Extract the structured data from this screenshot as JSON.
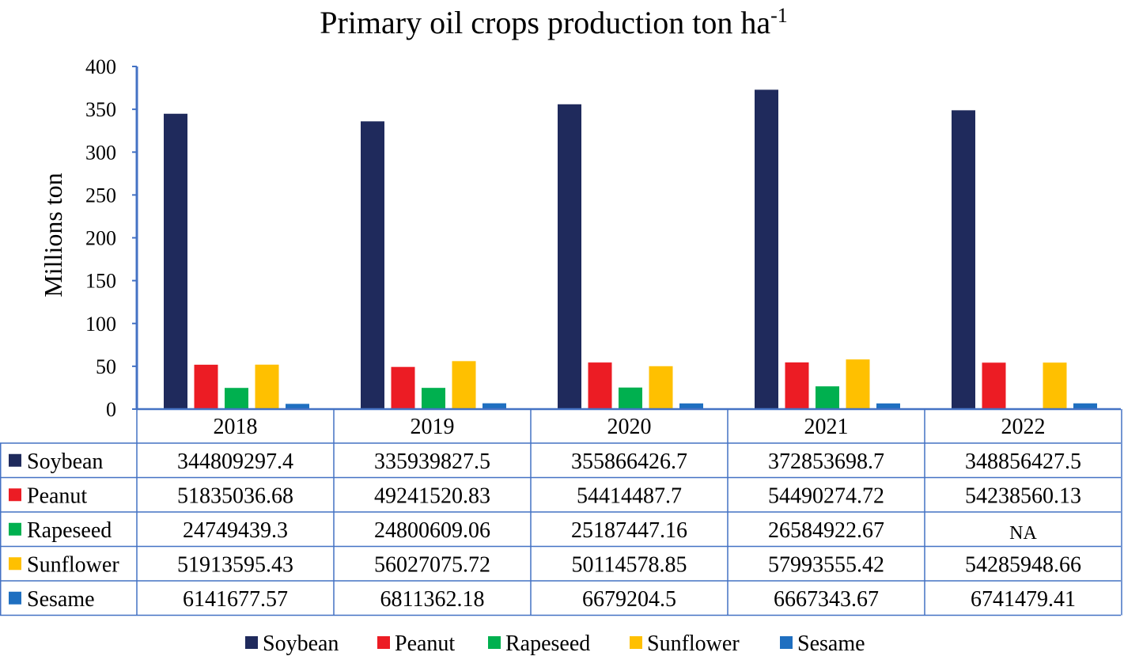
{
  "chart_data": {
    "type": "bar",
    "title": "Primary oil crops production ton ha",
    "title_superscript": "-1",
    "ylabel": "Millions ton",
    "xlabel": "",
    "ylim": [
      0,
      400
    ],
    "yticks": [
      "0",
      "50",
      "100",
      "150",
      "200",
      "250",
      "300",
      "350",
      "400"
    ],
    "grid": false,
    "legend_position": "bottom",
    "categories": [
      "2018",
      "2019",
      "2020",
      "2021",
      "2022"
    ],
    "series": [
      {
        "name": "Soybean",
        "color": "#1f2a5c",
        "values": [
          344.8092974,
          335.9398275,
          355.8664267,
          372.8536987,
          348.8564275
        ],
        "table": [
          "344809297.4",
          "335939827.5",
          "355866426.7",
          "372853698.7",
          "348856427.5"
        ]
      },
      {
        "name": "Peanut",
        "color": "#ec1c24",
        "values": [
          51.83503668,
          49.24152083,
          54.4144877,
          54.49027472,
          54.23856013
        ],
        "table": [
          "51835036.68",
          "49241520.83",
          "54414487.7",
          "54490274.72",
          "54238560.13"
        ]
      },
      {
        "name": "Rapeseed",
        "color": "#00b04f",
        "values": [
          24.7494393,
          24.80060906,
          25.18744716,
          26.58492267,
          null
        ],
        "table": [
          "24749439.3",
          "24800609.06",
          "25187447.16",
          "26584922.67",
          "NA"
        ]
      },
      {
        "name": "Sunflower",
        "color": "#ffc000",
        "values": [
          51.91359543,
          56.02707572,
          50.11457885,
          57.99355542,
          54.28594866
        ],
        "table": [
          "51913595.43",
          "56027075.72",
          "50114578.85",
          "57993555.42",
          "54285948.66"
        ]
      },
      {
        "name": "Sesame",
        "color": "#1f6fc0",
        "values": [
          6.14167757,
          6.81136218,
          6.6792045,
          6.66734367,
          6.74147941
        ],
        "table": [
          "6141677.57",
          "6811362.18",
          "6679204.5",
          "6667343.67",
          "6741479.41"
        ]
      }
    ],
    "axis_color": "#4472c4"
  }
}
